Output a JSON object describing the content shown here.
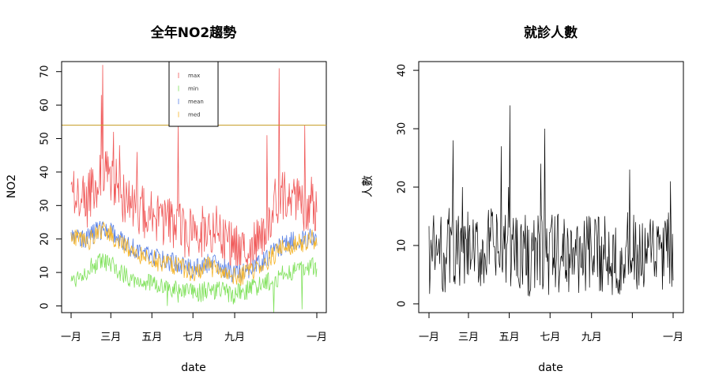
{
  "chart_data": [
    {
      "type": "line",
      "title": "全年NO2趨勢",
      "xlabel": "date",
      "ylabel": "NO2",
      "ylim": [
        -2,
        73
      ],
      "yticks": [
        0,
        10,
        20,
        30,
        40,
        50,
        60,
        70
      ],
      "x_tick_labels": [
        "一月",
        "三月",
        "五月",
        "七月",
        "九月",
        "一月"
      ],
      "x_tick_days": [
        0,
        59,
        120,
        181,
        243,
        365
      ],
      "legend": {
        "position": "top-center",
        "entries": [
          "max",
          "min",
          "mean",
          "med"
        ]
      },
      "reference_line": {
        "y": 54,
        "color": "#c8a02a"
      },
      "series": [
        {
          "name": "max",
          "color": "#f05a5a",
          "x": [
            0,
            12,
            24,
            36,
            48,
            60,
            72,
            84,
            96,
            108,
            120,
            132,
            144,
            156,
            168,
            180,
            192,
            204,
            216,
            228,
            240,
            252,
            264,
            276,
            288,
            300,
            312,
            324,
            336,
            348,
            360,
            365
          ],
          "values": [
            35,
            33,
            31,
            37,
            39,
            38,
            35,
            30,
            29,
            28,
            27,
            26,
            25,
            24,
            22,
            21,
            22,
            24,
            22,
            19,
            18,
            17,
            19,
            20,
            24,
            30,
            33,
            31,
            32,
            30,
            31,
            29
          ],
          "peaks": [
            [
              47,
              72
            ],
            [
              45,
              63
            ],
            [
              63,
              52
            ],
            [
              72,
              48
            ],
            [
              98,
              46
            ],
            [
              159,
              54
            ],
            [
              291,
              51
            ],
            [
              309,
              71
            ],
            [
              347,
              54
            ]
          ]
        },
        {
          "name": "min",
          "color": "#7fe15a",
          "x": [
            0,
            12,
            24,
            36,
            48,
            60,
            72,
            84,
            96,
            108,
            120,
            132,
            144,
            156,
            168,
            180,
            192,
            204,
            216,
            228,
            240,
            252,
            264,
            276,
            288,
            300,
            312,
            324,
            336,
            348,
            360,
            365
          ],
          "values": [
            8,
            9,
            11,
            12,
            13,
            12,
            10,
            9,
            8,
            7,
            7,
            6,
            5,
            5,
            4,
            4,
            4,
            5,
            5,
            4,
            3,
            4,
            5,
            6,
            7,
            8,
            9,
            10,
            11,
            12,
            12,
            10
          ],
          "dips": [
            [
              143,
              0
            ],
            [
              159,
              1
            ],
            [
              213,
              2
            ],
            [
              301,
              -2
            ],
            [
              343,
              -1
            ]
          ]
        },
        {
          "name": "mean",
          "color": "#5a82e6",
          "x": [
            0,
            12,
            24,
            36,
            48,
            60,
            72,
            84,
            96,
            108,
            120,
            132,
            144,
            156,
            168,
            180,
            192,
            204,
            216,
            228,
            240,
            252,
            264,
            276,
            288,
            300,
            312,
            324,
            336,
            348,
            360,
            365
          ],
          "values": [
            22,
            21,
            20,
            22,
            23,
            22,
            20,
            18,
            17,
            16,
            15,
            14,
            13,
            13,
            12,
            11,
            12,
            13,
            12,
            11,
            10,
            10,
            11,
            12,
            14,
            16,
            18,
            19,
            20,
            20,
            21,
            19
          ]
        },
        {
          "name": "med",
          "color": "#f5b428",
          "x": [
            0,
            12,
            24,
            36,
            48,
            60,
            72,
            84,
            96,
            108,
            120,
            132,
            144,
            156,
            168,
            180,
            192,
            204,
            216,
            228,
            240,
            252,
            264,
            276,
            288,
            300,
            312,
            324,
            336,
            348,
            360,
            365
          ],
          "values": [
            21,
            20,
            19,
            21,
            22,
            21,
            19,
            17,
            16,
            15,
            14,
            13,
            12,
            12,
            11,
            10,
            11,
            12,
            11,
            10,
            9,
            9,
            10,
            11,
            13,
            15,
            17,
            18,
            19,
            19,
            20,
            18
          ]
        }
      ]
    },
    {
      "type": "line",
      "title": "就診人數",
      "xlabel": "date",
      "ylabel": "人數",
      "ylim": [
        -1.5,
        41.5
      ],
      "yticks": [
        0,
        10,
        20,
        30,
        40
      ],
      "x_tick_labels": [
        "一月",
        "三月",
        "五月",
        "七月",
        "九月",
        "",
        "一月"
      ],
      "x_tick_days": [
        0,
        59,
        120,
        181,
        243,
        304,
        365
      ],
      "series": [
        {
          "name": "",
          "color": "#000000",
          "x": [
            0,
            10,
            20,
            30,
            40,
            50,
            60,
            70,
            80,
            90,
            100,
            110,
            120,
            130,
            140,
            150,
            160,
            170,
            180,
            190,
            200,
            210,
            220,
            230,
            240,
            250,
            260,
            270,
            280,
            290,
            300,
            310,
            320,
            330,
            340,
            350,
            360,
            365
          ],
          "values": [
            8,
            9,
            8,
            10,
            9,
            8,
            9,
            8,
            9,
            10,
            9,
            8,
            9,
            10,
            9,
            8,
            8,
            9,
            8,
            9,
            8,
            9,
            8,
            9,
            8,
            8,
            9,
            8,
            9,
            8,
            9,
            8,
            7,
            8,
            9,
            8,
            9,
            9
          ],
          "spikes": [
            [
              36,
              28
            ],
            [
              50,
              20
            ],
            [
              108,
              27
            ],
            [
              119,
              20
            ],
            [
              121,
              34
            ],
            [
              167,
              24
            ],
            [
              173,
              30
            ],
            [
              300,
              23
            ],
            [
              361,
              21
            ]
          ]
        }
      ]
    }
  ]
}
